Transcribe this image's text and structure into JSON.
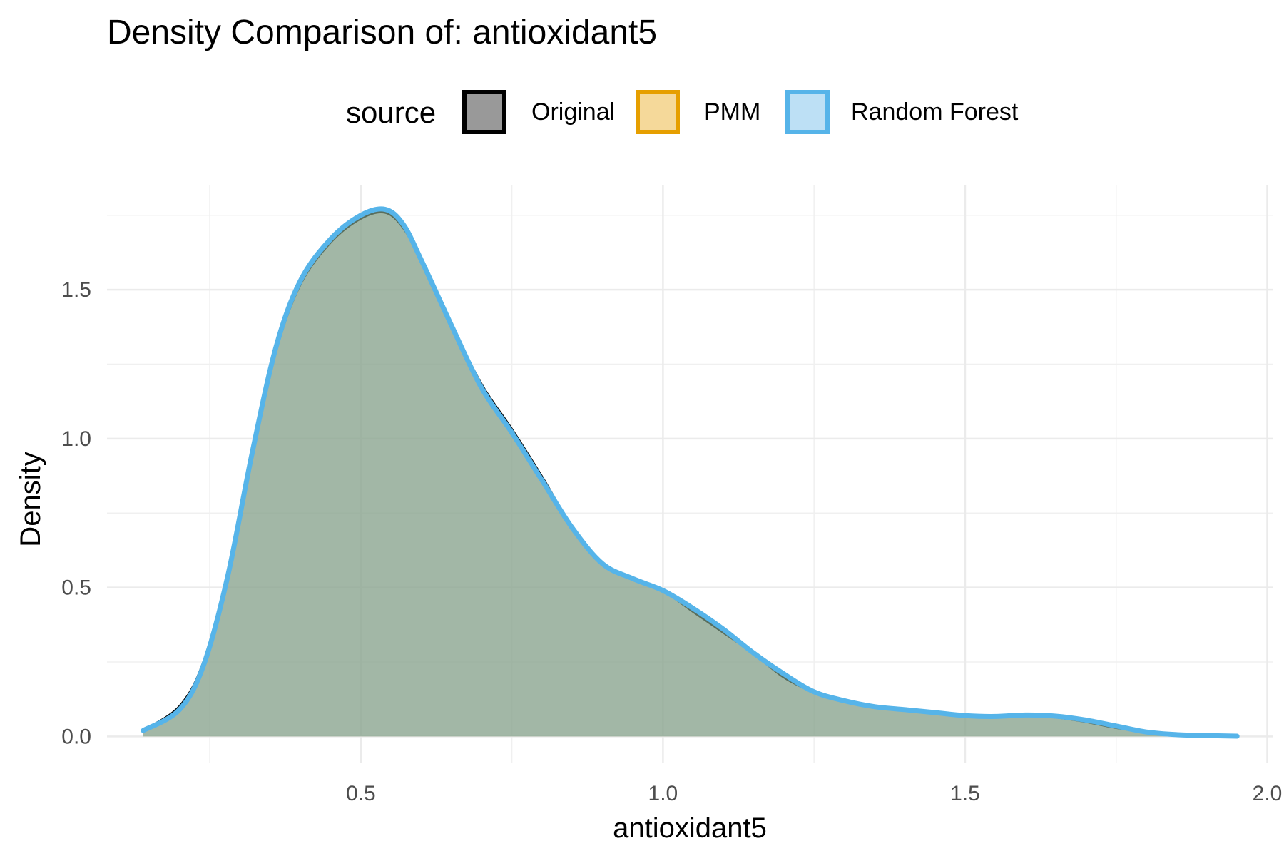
{
  "chart_data": {
    "type": "area",
    "title": "Density Comparison of: antioxidant5",
    "xlabel": "antioxidant5",
    "ylabel": "Density",
    "xlim": [
      0.08,
      2.01
    ],
    "ylim": [
      -0.09,
      1.85
    ],
    "x_ticks": [
      0.5,
      1.0,
      1.5,
      2.0
    ],
    "x_tick_labels": [
      "0.5",
      "1.0",
      "1.5",
      "2.0"
    ],
    "y_ticks": [
      0.0,
      0.5,
      1.0,
      1.5
    ],
    "y_tick_labels": [
      "0.0",
      "0.5",
      "1.0",
      "1.5"
    ],
    "grid": true,
    "legend": {
      "title": "source",
      "placement": "top",
      "entries": [
        {
          "label": "Original",
          "fill": "#999999",
          "stroke": "#000000"
        },
        {
          "label": "PMM",
          "fill": "#F5D99A",
          "stroke": "#E69F00"
        },
        {
          "label": "Random Forest",
          "fill": "#BDE0F5",
          "stroke": "#56B4E9"
        }
      ]
    },
    "series": [
      {
        "name": "Original",
        "fill": "#7f7f7f",
        "stroke": "#000000",
        "x": [
          0.14,
          0.2,
          0.24,
          0.28,
          0.32,
          0.36,
          0.4,
          0.45,
          0.5,
          0.54,
          0.57,
          0.6,
          0.65,
          0.7,
          0.75,
          0.8,
          0.85,
          0.9,
          0.95,
          1.0,
          1.05,
          1.1,
          1.15,
          1.2,
          1.25,
          1.3,
          1.35,
          1.4,
          1.45,
          1.5,
          1.55,
          1.6,
          1.65,
          1.7,
          1.75,
          1.8,
          1.85,
          1.9,
          1.95
        ],
        "y": [
          0.02,
          0.1,
          0.25,
          0.55,
          0.95,
          1.3,
          1.52,
          1.66,
          1.74,
          1.76,
          1.71,
          1.6,
          1.38,
          1.18,
          1.03,
          0.87,
          0.7,
          0.58,
          0.53,
          0.49,
          0.42,
          0.35,
          0.28,
          0.2,
          0.15,
          0.12,
          0.1,
          0.09,
          0.08,
          0.07,
          0.065,
          0.07,
          0.065,
          0.05,
          0.03,
          0.015,
          0.005,
          0.002,
          0.0
        ]
      },
      {
        "name": "PMM",
        "fill": "#E69F00",
        "stroke": "#E69F00",
        "x": [
          0.14,
          0.2,
          0.24,
          0.28,
          0.32,
          0.36,
          0.4,
          0.45,
          0.5,
          0.54,
          0.57,
          0.6,
          0.65,
          0.7,
          0.75,
          0.8,
          0.85,
          0.9,
          0.95,
          1.0,
          1.05,
          1.1,
          1.15,
          1.2,
          1.25,
          1.3,
          1.35,
          1.4,
          1.45,
          1.5,
          1.55,
          1.6,
          1.65,
          1.7,
          1.75,
          1.8,
          1.85,
          1.9,
          1.95
        ],
        "y": [
          0.02,
          0.09,
          0.24,
          0.54,
          0.95,
          1.31,
          1.53,
          1.67,
          1.75,
          1.77,
          1.72,
          1.6,
          1.38,
          1.17,
          1.02,
          0.86,
          0.7,
          0.58,
          0.53,
          0.49,
          0.43,
          0.36,
          0.28,
          0.21,
          0.15,
          0.12,
          0.1,
          0.09,
          0.08,
          0.07,
          0.067,
          0.072,
          0.068,
          0.055,
          0.035,
          0.015,
          0.006,
          0.003,
          0.001
        ]
      },
      {
        "name": "Random Forest",
        "fill": "#56B4E9",
        "stroke": "#56B4E9",
        "x": [
          0.14,
          0.2,
          0.24,
          0.28,
          0.32,
          0.36,
          0.4,
          0.45,
          0.5,
          0.54,
          0.57,
          0.6,
          0.65,
          0.7,
          0.75,
          0.8,
          0.85,
          0.9,
          0.95,
          1.0,
          1.05,
          1.1,
          1.15,
          1.2,
          1.25,
          1.3,
          1.35,
          1.4,
          1.45,
          1.5,
          1.55,
          1.6,
          1.65,
          1.7,
          1.75,
          1.8,
          1.85,
          1.9,
          1.95
        ],
        "y": [
          0.02,
          0.09,
          0.24,
          0.54,
          0.95,
          1.31,
          1.53,
          1.67,
          1.75,
          1.77,
          1.72,
          1.6,
          1.38,
          1.17,
          1.02,
          0.86,
          0.7,
          0.58,
          0.53,
          0.49,
          0.43,
          0.36,
          0.28,
          0.21,
          0.15,
          0.12,
          0.1,
          0.09,
          0.08,
          0.07,
          0.067,
          0.072,
          0.068,
          0.055,
          0.035,
          0.015,
          0.006,
          0.003,
          0.001
        ]
      }
    ]
  }
}
